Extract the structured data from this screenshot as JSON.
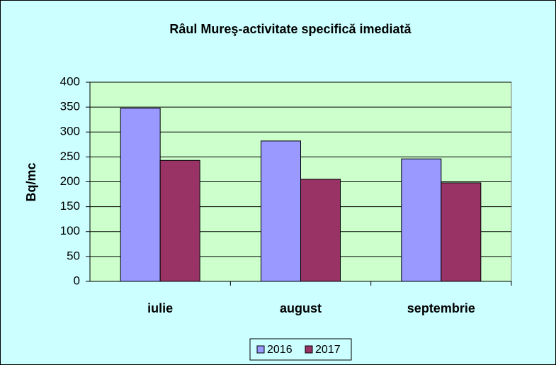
{
  "chart_data": {
    "type": "bar",
    "title": "Râul Mureş-activitate specifică imediată",
    "y_label": "Bq/mc",
    "categories": [
      "iulie",
      "august",
      "septembrie"
    ],
    "series": [
      {
        "name": "2016",
        "color": "#9999ff",
        "values": [
          348,
          282,
          246
        ]
      },
      {
        "name": "2017",
        "color": "#993366",
        "values": [
          243,
          205,
          198
        ]
      }
    ],
    "ylim": [
      0,
      400
    ],
    "yticks": [
      0,
      50,
      100,
      150,
      200,
      250,
      300,
      350,
      400
    ],
    "grid": true,
    "legend": "bottom"
  }
}
